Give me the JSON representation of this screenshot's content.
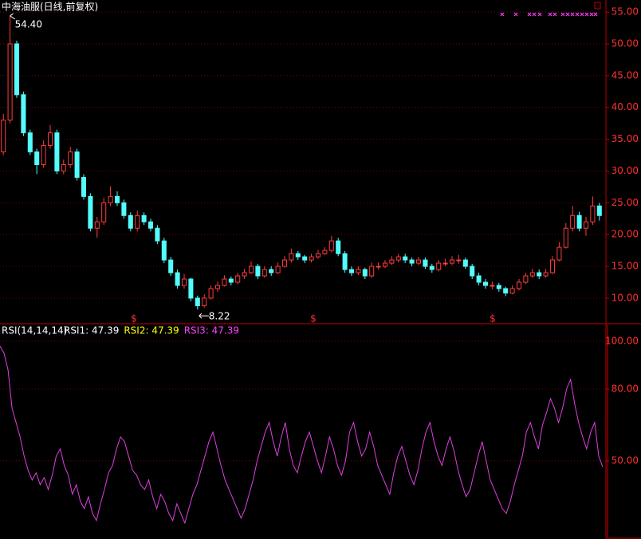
{
  "chart_data": [
    {
      "type": "candlestick",
      "title": "中海油服(日线,前复权)",
      "up_color": "#ff3c3c",
      "down_color": "#54fcfc",
      "grid": true,
      "ylim": [
        6.1,
        56.9
      ],
      "yticks": [
        {
          "value": 10,
          "label": "10.00"
        },
        {
          "value": 15,
          "label": "15.00"
        },
        {
          "value": 20,
          "label": "20.00"
        },
        {
          "value": 25,
          "label": "25.00"
        },
        {
          "value": 30,
          "label": "30.00"
        },
        {
          "value": 35,
          "label": "35.00"
        },
        {
          "value": 40,
          "label": "40.00"
        },
        {
          "value": 45,
          "label": "45.00"
        },
        {
          "value": 50,
          "label": "50.00"
        },
        {
          "value": 55,
          "label": "55.00"
        }
      ],
      "max_label": "54.40",
      "min_label": "8.22",
      "event_label": "$",
      "open": [
        33,
        38,
        50,
        42,
        36,
        33,
        31,
        34,
        36,
        30,
        31,
        33,
        29,
        26,
        21,
        22,
        25,
        26,
        25,
        23,
        21,
        23,
        22,
        21,
        19,
        16,
        14,
        12,
        13,
        10,
        8.8,
        10,
        11.5,
        12,
        13,
        12.5,
        13.5,
        14,
        15,
        13.5,
        14.5,
        14,
        15,
        16,
        17,
        16.5,
        16,
        16.5,
        17,
        17.5,
        19,
        17,
        14.5,
        14,
        14.5,
        13.5,
        15,
        15,
        15.5,
        16,
        16.5,
        16,
        15.5,
        16,
        15,
        14.5,
        15.5,
        15.5,
        16,
        16,
        15,
        13.5,
        12.5,
        12,
        12,
        11.5,
        10.8,
        11.5,
        12.5,
        13.5,
        14,
        13.5,
        14,
        16,
        18,
        21,
        23,
        21,
        22,
        24.5
      ],
      "high": [
        39,
        54.4,
        50.5,
        42.5,
        36.5,
        33.5,
        34.8,
        37.2,
        36.5,
        31.8,
        33.8,
        33.5,
        29.5,
        26.5,
        22.8,
        25.8,
        27.6,
        26.8,
        25.5,
        23.5,
        23.8,
        23.5,
        22.5,
        21.5,
        19.5,
        16.5,
        14.5,
        13.8,
        13.2,
        10.4,
        10.6,
        12,
        12.6,
        13.6,
        13.4,
        14,
        14.6,
        15.8,
        15.4,
        15,
        15,
        15.6,
        16.6,
        17.8,
        17.4,
        16.8,
        17,
        17.6,
        18,
        19.8,
        19.5,
        17.4,
        15,
        15,
        14.8,
        15.6,
        15.6,
        16,
        16.6,
        17,
        17,
        16.4,
        16.5,
        16.4,
        15.4,
        16,
        16.2,
        16.6,
        16.8,
        16.4,
        15.4,
        14,
        13,
        12.6,
        12.4,
        11.8,
        12,
        13,
        14,
        14.6,
        14.5,
        14.6,
        16.6,
        18.8,
        21.8,
        24.5,
        23.6,
        22.8,
        26,
        25
      ],
      "low": [
        32.5,
        37.5,
        41.5,
        35.5,
        32.5,
        29.5,
        30.5,
        33.5,
        29.5,
        29.5,
        30.5,
        28.5,
        25.5,
        20.5,
        19.5,
        21.5,
        24.5,
        24.5,
        22.5,
        20.5,
        20.5,
        21.5,
        20.5,
        18.5,
        15.5,
        13.5,
        11.5,
        11.5,
        9.5,
        8.22,
        8.5,
        9.8,
        11,
        11.8,
        12,
        12.2,
        13,
        13.8,
        13,
        13.2,
        13.5,
        13.8,
        14.8,
        15.6,
        16,
        15.5,
        15.6,
        16.2,
        16.8,
        17.2,
        16.6,
        14,
        13.5,
        13.6,
        13,
        13.2,
        14.5,
        14.7,
        15.2,
        15.6,
        15.5,
        15,
        15.2,
        14.6,
        14,
        14.2,
        15,
        15.2,
        15.4,
        14.6,
        13,
        12,
        11.5,
        11.4,
        11,
        10.3,
        10.6,
        11.2,
        12.2,
        13.2,
        13,
        13.2,
        13.8,
        15.8,
        17.8,
        20.5,
        20.5,
        19.8,
        21.5,
        22.2
      ],
      "close": [
        38,
        50,
        42,
        36,
        33,
        31,
        34,
        36,
        30,
        31,
        33,
        29,
        26,
        21,
        22,
        25,
        26,
        25,
        23,
        21,
        23,
        22,
        21,
        19,
        16,
        14,
        12,
        13,
        10,
        8.8,
        10,
        11.5,
        12,
        13,
        12.5,
        13.5,
        14,
        15,
        13.5,
        14.5,
        14,
        15,
        16,
        17,
        16.5,
        16,
        16.5,
        17,
        17.5,
        19,
        17,
        14.5,
        14,
        14.5,
        13.5,
        15,
        15,
        15.5,
        16,
        16.5,
        16,
        15.5,
        16,
        15,
        14.5,
        15.5,
        15.5,
        16,
        16,
        15,
        13.5,
        12.5,
        12,
        12,
        11.5,
        10.8,
        11.5,
        12.5,
        13.5,
        14,
        13.5,
        14,
        16,
        18,
        21,
        23,
        21,
        22,
        24.5,
        23
      ]
    },
    {
      "type": "line",
      "title": "RSI(14,14,14)",
      "grid": true,
      "legend": [
        {
          "label": "RSI1: 47.39",
          "color": "#ffffff"
        },
        {
          "label": "RSI2: 47.39",
          "color": "#ffff00"
        },
        {
          "label": "RSI3: 47.39",
          "color": "#ff40ff"
        }
      ],
      "ylim": [
        17.3,
        107
      ],
      "yticks": [
        {
          "value": 50,
          "label": "50.00"
        },
        {
          "value": 80,
          "label": "80.00"
        },
        {
          "value": 100,
          "label": "100.00"
        }
      ],
      "series": [
        {
          "name": "RSI3",
          "color": "#e040e0",
          "values": [
            98,
            95,
            88,
            72,
            66,
            60,
            52,
            46,
            42,
            45,
            40,
            43,
            38,
            44,
            52,
            55,
            48,
            44,
            36,
            40,
            33,
            30,
            35,
            28,
            25,
            32,
            38,
            45,
            48,
            55,
            60,
            58,
            52,
            46,
            44,
            40,
            38,
            42,
            35,
            30,
            36,
            33,
            28,
            25,
            32,
            28,
            24,
            30,
            36,
            40,
            46,
            52,
            58,
            62,
            55,
            48,
            42,
            38,
            34,
            30,
            26,
            30,
            36,
            42,
            50,
            56,
            62,
            66,
            58,
            52,
            60,
            66,
            55,
            48,
            45,
            52,
            58,
            62,
            56,
            50,
            45,
            52,
            60,
            55,
            48,
            44,
            50,
            62,
            66,
            58,
            52,
            55,
            62,
            56,
            48,
            44,
            40,
            36,
            45,
            52,
            56,
            50,
            44,
            40,
            46,
            55,
            62,
            66,
            58,
            52,
            48,
            55,
            60,
            54,
            46,
            40,
            35,
            38,
            45,
            52,
            58,
            50,
            42,
            38,
            34,
            30,
            28,
            33,
            40,
            46,
            52,
            62,
            66,
            60,
            55,
            65,
            70,
            76,
            72,
            66,
            72,
            80,
            84,
            74,
            66,
            60,
            55,
            62,
            66,
            52,
            47.39
          ]
        }
      ]
    }
  ]
}
